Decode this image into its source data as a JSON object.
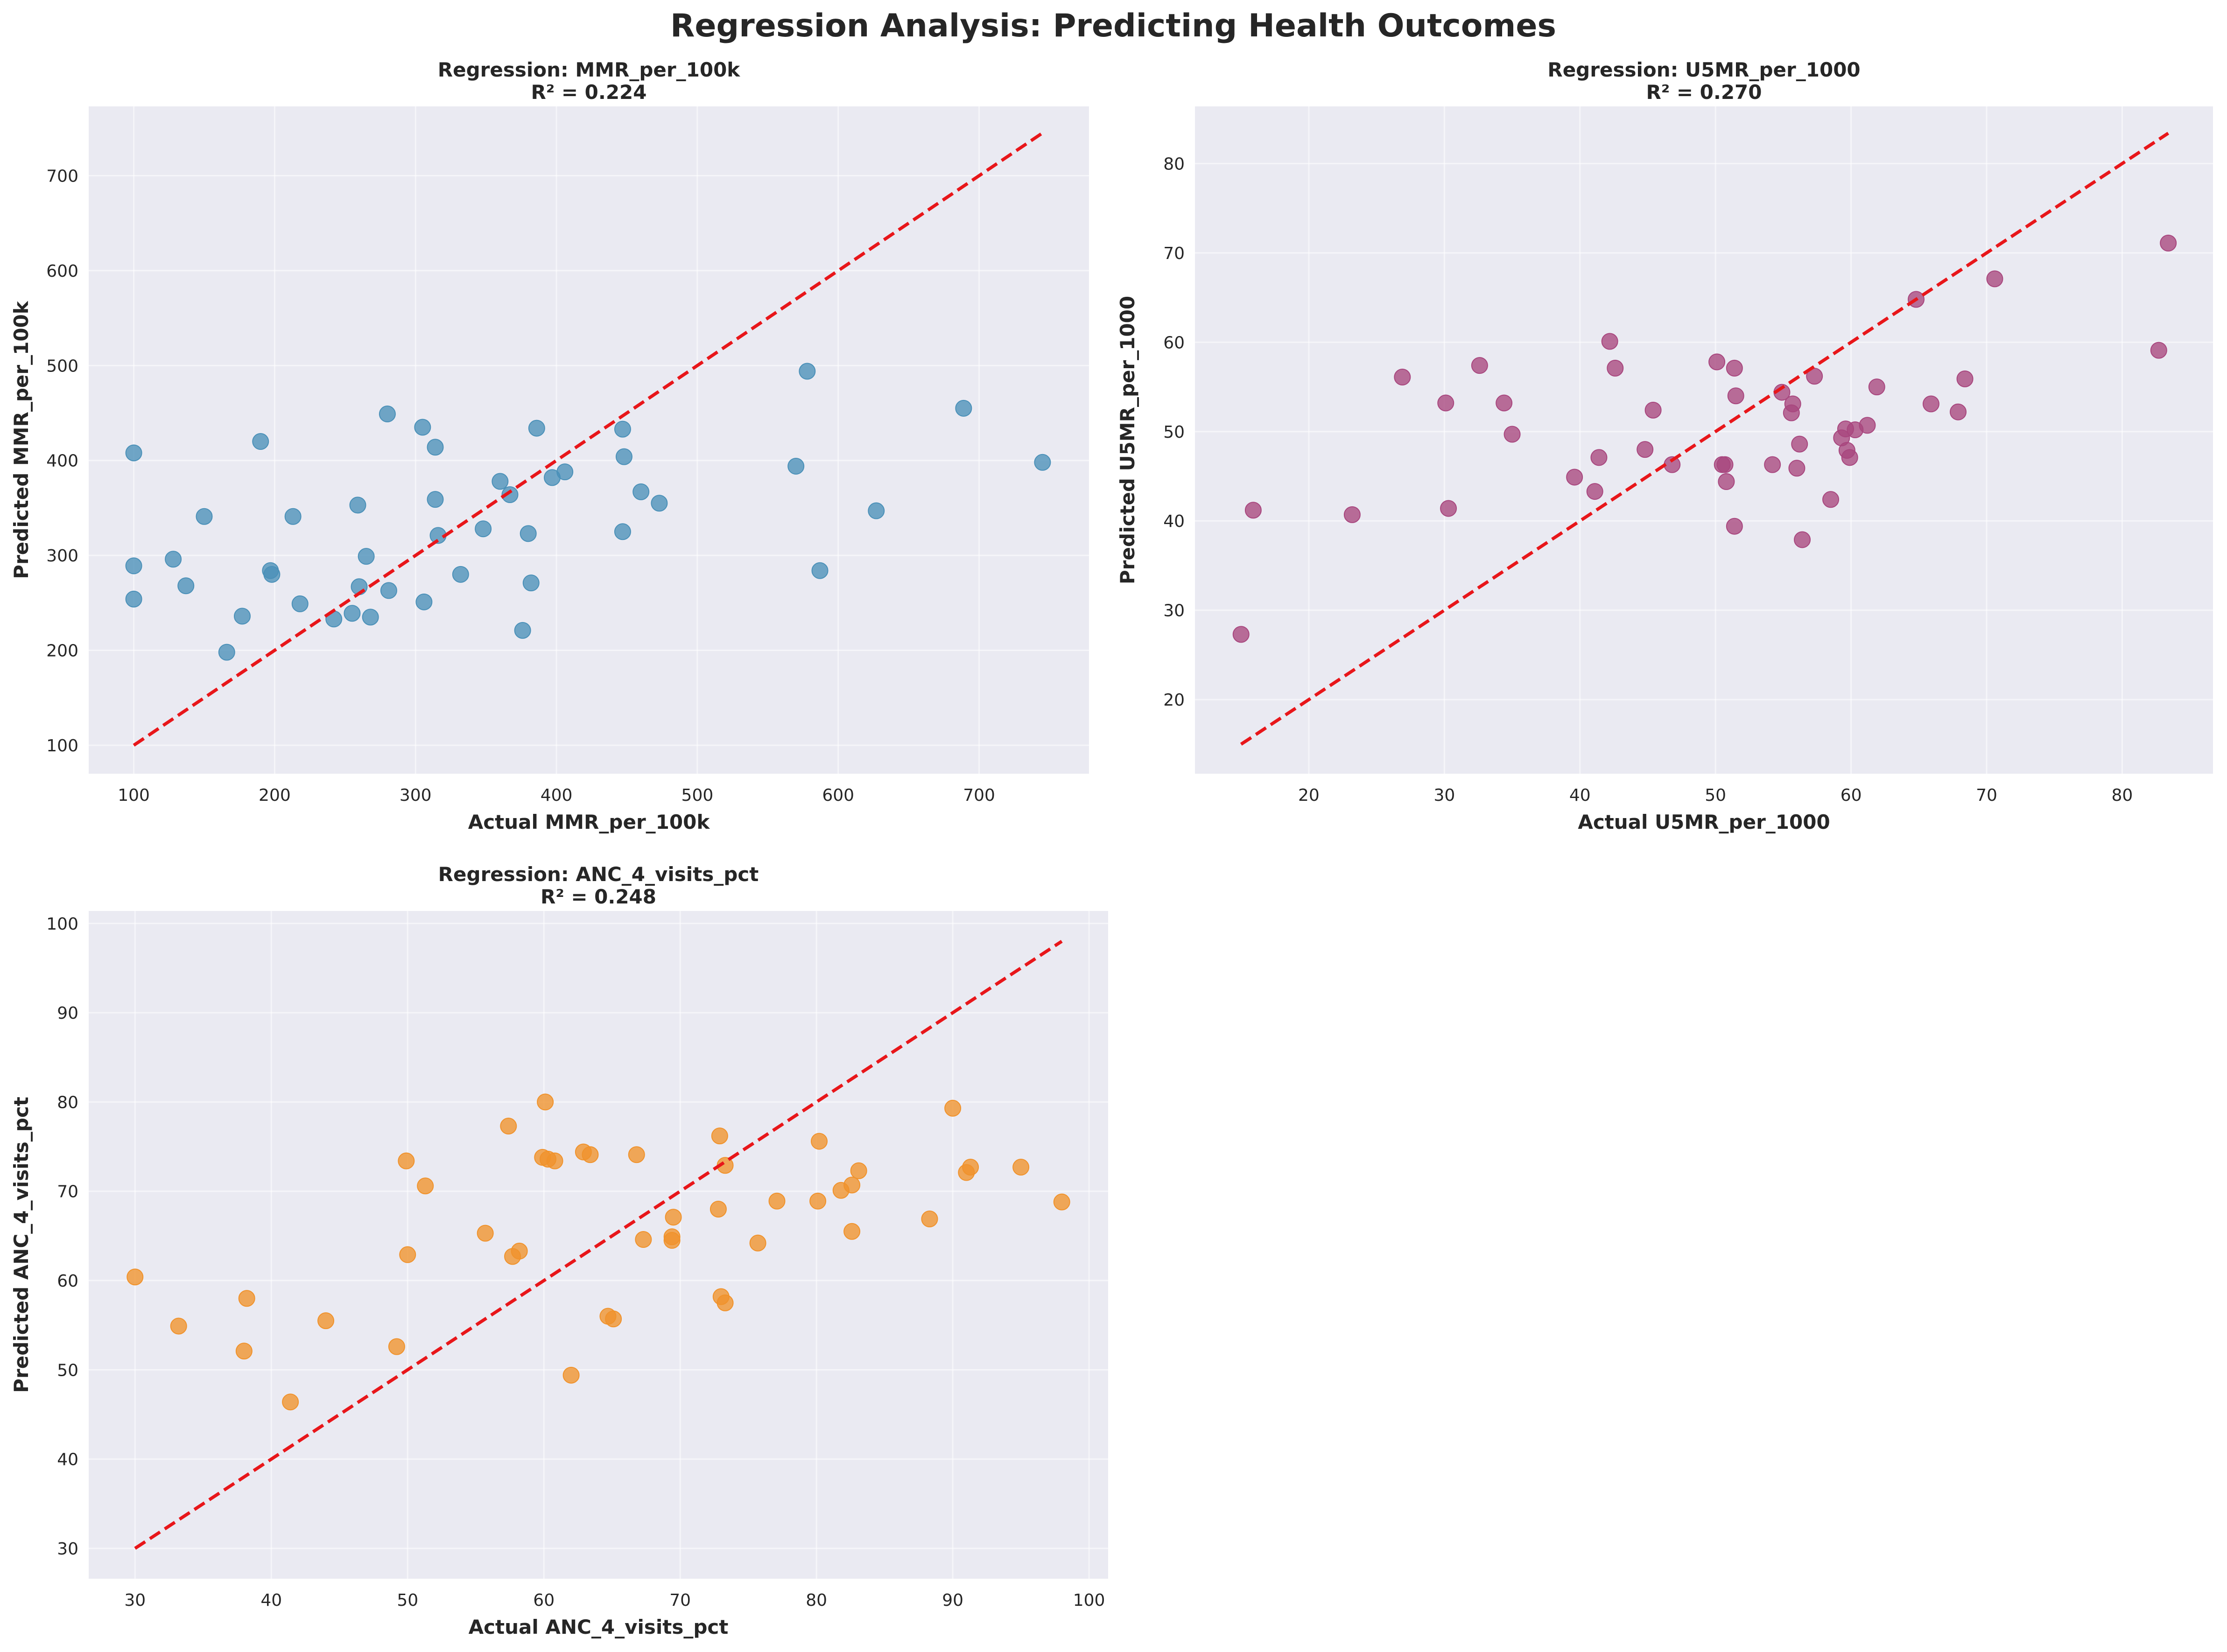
{
  "figure": {
    "title": "Regression Analysis: Predicting Health Outcomes",
    "background": "#ffffff",
    "axes_background": "#eaeaf2"
  },
  "chart_data": [
    {
      "type": "scatter",
      "title_line1": "Regression: MMR_per_100k",
      "title_line2": "R² = 0.224",
      "xlabel": "Actual MMR_per_100k",
      "ylabel": "Predicted MMR_per_100k",
      "xlim": [
        68,
        778
      ],
      "ylim": [
        70,
        773
      ],
      "xticks": [
        100,
        200,
        300,
        400,
        500,
        600,
        700
      ],
      "yticks": [
        100,
        200,
        300,
        400,
        500,
        600,
        700
      ],
      "color": "#4a90b8",
      "grid": true,
      "reference_line": {
        "from": [
          100,
          100
        ],
        "to": [
          745,
          745
        ],
        "color": "#e8161a",
        "style": "dashed"
      },
      "points": [
        {
          "x": 100,
          "y": 408
        },
        {
          "x": 100,
          "y": 289
        },
        {
          "x": 100,
          "y": 254
        },
        {
          "x": 128,
          "y": 296
        },
        {
          "x": 137,
          "y": 268
        },
        {
          "x": 150,
          "y": 341
        },
        {
          "x": 166,
          "y": 198
        },
        {
          "x": 177,
          "y": 236
        },
        {
          "x": 190,
          "y": 420
        },
        {
          "x": 197,
          "y": 284
        },
        {
          "x": 198,
          "y": 280
        },
        {
          "x": 213,
          "y": 341
        },
        {
          "x": 218,
          "y": 249
        },
        {
          "x": 242,
          "y": 233
        },
        {
          "x": 255,
          "y": 239
        },
        {
          "x": 259,
          "y": 353
        },
        {
          "x": 260,
          "y": 267
        },
        {
          "x": 265,
          "y": 299
        },
        {
          "x": 268,
          "y": 235
        },
        {
          "x": 280,
          "y": 449
        },
        {
          "x": 281,
          "y": 263
        },
        {
          "x": 305,
          "y": 435
        },
        {
          "x": 306,
          "y": 251
        },
        {
          "x": 314,
          "y": 414
        },
        {
          "x": 314,
          "y": 359
        },
        {
          "x": 316,
          "y": 321
        },
        {
          "x": 332,
          "y": 280
        },
        {
          "x": 348,
          "y": 328
        },
        {
          "x": 360,
          "y": 378
        },
        {
          "x": 367,
          "y": 364
        },
        {
          "x": 376,
          "y": 221
        },
        {
          "x": 380,
          "y": 323
        },
        {
          "x": 382,
          "y": 271
        },
        {
          "x": 386,
          "y": 434
        },
        {
          "x": 397,
          "y": 382
        },
        {
          "x": 406,
          "y": 388
        },
        {
          "x": 447,
          "y": 433
        },
        {
          "x": 447,
          "y": 325
        },
        {
          "x": 448,
          "y": 404
        },
        {
          "x": 460,
          "y": 367
        },
        {
          "x": 473,
          "y": 355
        },
        {
          "x": 570,
          "y": 394
        },
        {
          "x": 578,
          "y": 494
        },
        {
          "x": 587,
          "y": 284
        },
        {
          "x": 627,
          "y": 347
        },
        {
          "x": 689,
          "y": 455
        },
        {
          "x": 745,
          "y": 398
        }
      ]
    },
    {
      "type": "scatter",
      "title_line1": "Regression: U5MR_per_1000",
      "title_line2": "R² = 0.270",
      "xlabel": "Actual U5MR_per_1000",
      "ylabel": "Predicted U5MR_per_1000",
      "xlim": [
        11.6,
        86.7
      ],
      "ylim": [
        11.7,
        86.4
      ],
      "xticks": [
        20,
        30,
        40,
        50,
        60,
        70,
        80
      ],
      "yticks": [
        20,
        30,
        40,
        50,
        60,
        70,
        80
      ],
      "color": "#a8467e",
      "grid": true,
      "reference_line": {
        "from": [
          15,
          15
        ],
        "to": [
          83.4,
          83.4
        ],
        "color": "#e8161a",
        "style": "dashed"
      },
      "points": [
        {
          "x": 15.0,
          "y": 27.3
        },
        {
          "x": 15.9,
          "y": 41.2
        },
        {
          "x": 23.2,
          "y": 40.7
        },
        {
          "x": 26.9,
          "y": 56.1
        },
        {
          "x": 30.1,
          "y": 53.2
        },
        {
          "x": 30.3,
          "y": 41.4
        },
        {
          "x": 32.6,
          "y": 57.4
        },
        {
          "x": 34.4,
          "y": 53.2
        },
        {
          "x": 35.0,
          "y": 49.7
        },
        {
          "x": 39.6,
          "y": 44.9
        },
        {
          "x": 41.1,
          "y": 43.3
        },
        {
          "x": 41.4,
          "y": 47.1
        },
        {
          "x": 42.2,
          "y": 60.1
        },
        {
          "x": 42.6,
          "y": 57.1
        },
        {
          "x": 44.8,
          "y": 48.0
        },
        {
          "x": 45.4,
          "y": 52.4
        },
        {
          "x": 46.8,
          "y": 46.3
        },
        {
          "x": 50.1,
          "y": 57.8
        },
        {
          "x": 50.5,
          "y": 46.3
        },
        {
          "x": 50.7,
          "y": 46.3
        },
        {
          "x": 50.8,
          "y": 44.4
        },
        {
          "x": 51.4,
          "y": 39.4
        },
        {
          "x": 51.4,
          "y": 57.1
        },
        {
          "x": 51.5,
          "y": 54.0
        },
        {
          "x": 54.2,
          "y": 46.3
        },
        {
          "x": 54.9,
          "y": 54.4
        },
        {
          "x": 55.6,
          "y": 52.1
        },
        {
          "x": 55.7,
          "y": 53.1
        },
        {
          "x": 56.0,
          "y": 45.9
        },
        {
          "x": 56.2,
          "y": 48.6
        },
        {
          "x": 56.4,
          "y": 37.9
        },
        {
          "x": 57.3,
          "y": 56.2
        },
        {
          "x": 58.5,
          "y": 42.4
        },
        {
          "x": 59.3,
          "y": 49.3
        },
        {
          "x": 59.6,
          "y": 50.3
        },
        {
          "x": 59.7,
          "y": 47.9
        },
        {
          "x": 59.9,
          "y": 47.1
        },
        {
          "x": 60.3,
          "y": 50.2
        },
        {
          "x": 61.2,
          "y": 50.7
        },
        {
          "x": 61.9,
          "y": 55.0
        },
        {
          "x": 64.8,
          "y": 64.8
        },
        {
          "x": 65.9,
          "y": 53.1
        },
        {
          "x": 67.9,
          "y": 52.2
        },
        {
          "x": 68.4,
          "y": 55.9
        },
        {
          "x": 70.6,
          "y": 67.1
        },
        {
          "x": 82.7,
          "y": 59.1
        },
        {
          "x": 83.4,
          "y": 71.1
        }
      ]
    },
    {
      "type": "scatter",
      "title_line1": "Regression: ANC_4_visits_pct",
      "title_line2": "R² = 0.248",
      "xlabel": "Actual ANC_4_visits_pct",
      "ylabel": "Predicted ANC_4_visits_pct",
      "xlim": [
        26.6,
        101.4
      ],
      "ylim": [
        26.6,
        101.4
      ],
      "xticks": [
        30,
        40,
        50,
        60,
        70,
        80,
        90,
        100
      ],
      "yticks": [
        30,
        40,
        50,
        60,
        70,
        80,
        90,
        100
      ],
      "color": "#f0922b",
      "grid": true,
      "reference_line": {
        "from": [
          30,
          30
        ],
        "to": [
          98,
          98
        ],
        "color": "#e8161a",
        "style": "dashed"
      },
      "points": [
        {
          "x": 30.0,
          "y": 60.4
        },
        {
          "x": 33.2,
          "y": 54.9
        },
        {
          "x": 38.0,
          "y": 52.1
        },
        {
          "x": 38.2,
          "y": 58.0
        },
        {
          "x": 41.4,
          "y": 46.4
        },
        {
          "x": 44.0,
          "y": 55.5
        },
        {
          "x": 49.2,
          "y": 52.6
        },
        {
          "x": 49.9,
          "y": 73.4
        },
        {
          "x": 50.0,
          "y": 62.9
        },
        {
          "x": 51.3,
          "y": 70.6
        },
        {
          "x": 55.7,
          "y": 65.3
        },
        {
          "x": 57.4,
          "y": 77.3
        },
        {
          "x": 57.7,
          "y": 62.7
        },
        {
          "x": 58.2,
          "y": 63.3
        },
        {
          "x": 59.9,
          "y": 73.8
        },
        {
          "x": 60.1,
          "y": 80.0
        },
        {
          "x": 60.3,
          "y": 73.6
        },
        {
          "x": 60.8,
          "y": 73.4
        },
        {
          "x": 62.0,
          "y": 49.4
        },
        {
          "x": 62.9,
          "y": 74.4
        },
        {
          "x": 63.4,
          "y": 74.1
        },
        {
          "x": 64.7,
          "y": 56.0
        },
        {
          "x": 65.1,
          "y": 55.7
        },
        {
          "x": 66.8,
          "y": 74.1
        },
        {
          "x": 67.3,
          "y": 64.6
        },
        {
          "x": 69.4,
          "y": 64.9
        },
        {
          "x": 69.4,
          "y": 64.5
        },
        {
          "x": 69.5,
          "y": 67.1
        },
        {
          "x": 72.8,
          "y": 68.0
        },
        {
          "x": 72.9,
          "y": 76.2
        },
        {
          "x": 73.0,
          "y": 58.2
        },
        {
          "x": 73.3,
          "y": 57.5
        },
        {
          "x": 73.3,
          "y": 72.9
        },
        {
          "x": 75.7,
          "y": 64.2
        },
        {
          "x": 77.1,
          "y": 68.9
        },
        {
          "x": 80.1,
          "y": 68.9
        },
        {
          "x": 80.2,
          "y": 75.6
        },
        {
          "x": 81.8,
          "y": 70.1
        },
        {
          "x": 82.6,
          "y": 65.5
        },
        {
          "x": 82.6,
          "y": 70.7
        },
        {
          "x": 83.1,
          "y": 72.3
        },
        {
          "x": 88.3,
          "y": 66.9
        },
        {
          "x": 90.0,
          "y": 79.3
        },
        {
          "x": 91.0,
          "y": 72.1
        },
        {
          "x": 91.3,
          "y": 72.7
        },
        {
          "x": 95.0,
          "y": 72.7
        },
        {
          "x": 98.0,
          "y": 68.8
        }
      ]
    }
  ]
}
